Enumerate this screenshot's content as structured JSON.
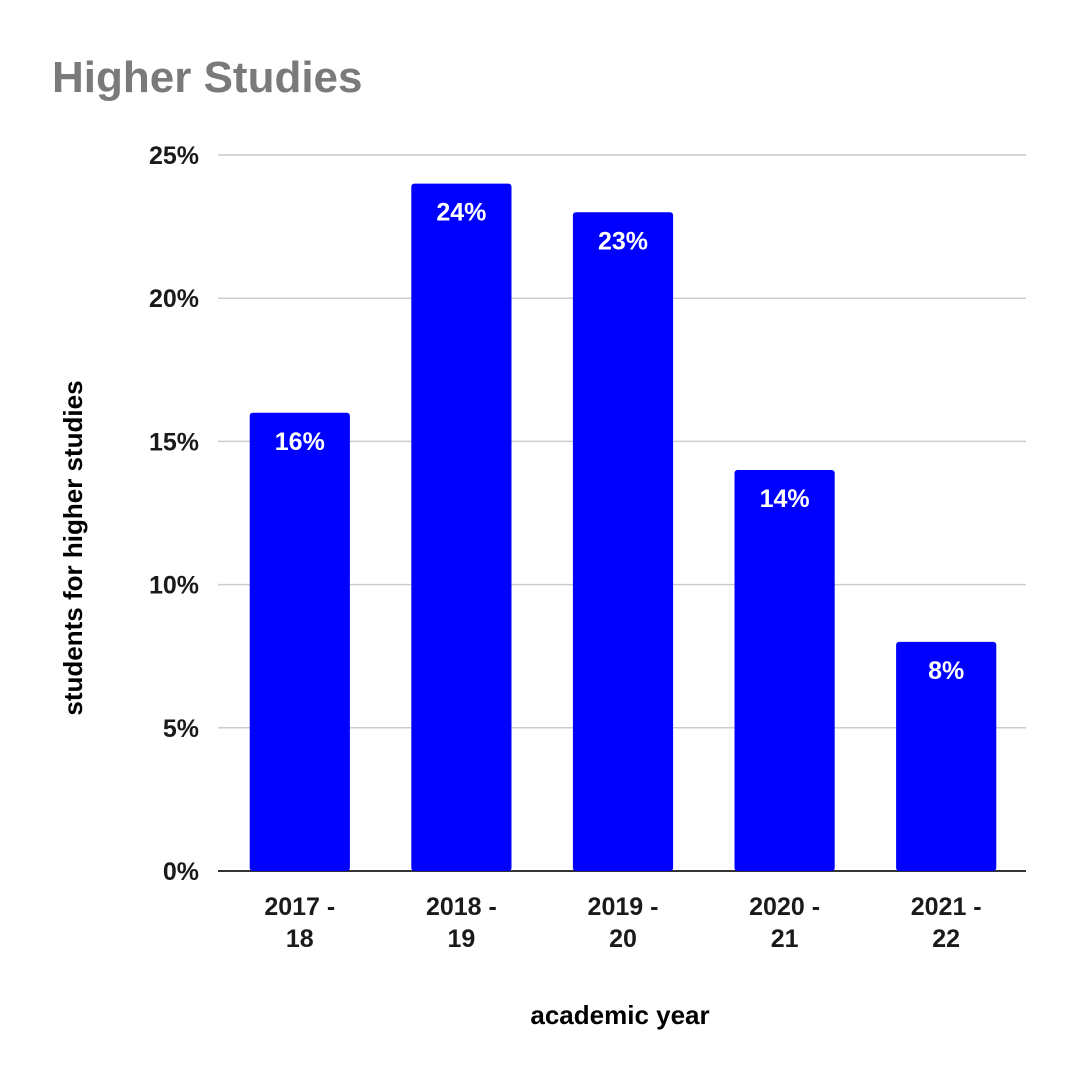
{
  "chart_data": {
    "type": "bar",
    "title": "Higher Studies",
    "xlabel": "academic year",
    "ylabel": "students for higher studies",
    "categories": [
      "2017 - 18",
      "2018 - 19",
      "2019 - 20",
      "2020 - 21",
      "2021 - 22"
    ],
    "category_lines": [
      [
        "2017 -",
        "18"
      ],
      [
        "2018 -",
        "19"
      ],
      [
        "2019 -",
        "20"
      ],
      [
        "2020 -",
        "21"
      ],
      [
        "2021 -",
        "22"
      ]
    ],
    "values": [
      16,
      24,
      23,
      14,
      8
    ],
    "data_labels": [
      "16%",
      "24%",
      "23%",
      "14%",
      "8%"
    ],
    "ylim": [
      0,
      25
    ],
    "y_ticks": [
      0,
      5,
      10,
      15,
      20,
      25
    ],
    "y_tick_labels": [
      "0%",
      "5%",
      "10%",
      "15%",
      "20%",
      "25%"
    ],
    "grid": true,
    "legend": "none",
    "colors": {
      "bar": "#0000ff",
      "title": "#7a7a7a",
      "grid": "#cccccc",
      "baseline": "#333333",
      "text": "#1a1a1a",
      "data_label": "#ffffff"
    }
  }
}
